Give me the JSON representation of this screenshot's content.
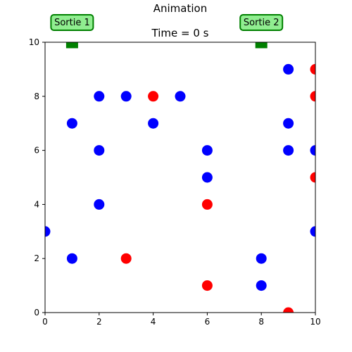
{
  "chart_data": {
    "type": "scatter",
    "title": "Animation",
    "subtitle": "Time = 0 s",
    "xlim": [
      0,
      10
    ],
    "ylim": [
      0,
      10
    ],
    "xticks": [
      0,
      2,
      4,
      6,
      8,
      10
    ],
    "yticks": [
      0,
      2,
      4,
      6,
      8,
      10
    ],
    "grid": false,
    "exits": [
      {
        "label": "Sortie 1",
        "x": 1,
        "y": 10
      },
      {
        "label": "Sortie 2",
        "x": 8,
        "y": 10
      }
    ],
    "series": [
      {
        "color": "#0000ff",
        "points": [
          [
            0,
            3
          ],
          [
            1,
            7
          ],
          [
            1,
            2
          ],
          [
            2,
            8
          ],
          [
            2,
            6
          ],
          [
            2,
            4
          ],
          [
            3,
            8
          ],
          [
            4,
            7
          ],
          [
            5,
            8
          ],
          [
            6,
            6
          ],
          [
            6,
            5
          ],
          [
            8,
            2
          ],
          [
            8,
            1
          ],
          [
            9,
            9
          ],
          [
            9,
            7
          ],
          [
            9,
            6
          ],
          [
            10,
            6
          ],
          [
            10,
            3
          ]
        ]
      },
      {
        "color": "#ff0000",
        "points": [
          [
            1,
            10
          ],
          [
            3,
            2
          ],
          [
            4,
            8
          ],
          [
            6,
            4
          ],
          [
            6,
            1
          ],
          [
            9,
            0
          ],
          [
            10,
            9
          ],
          [
            10,
            8
          ],
          [
            10,
            5
          ]
        ]
      }
    ]
  },
  "colors": {
    "exit_marker": "#008000",
    "exit_box_fill": "#90ee90",
    "exit_box_border": "#008000"
  }
}
